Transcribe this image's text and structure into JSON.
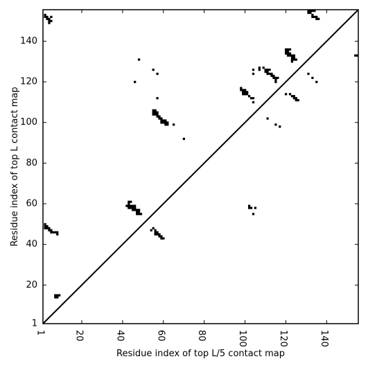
{
  "chart_data": {
    "type": "scatter",
    "title": "",
    "xlabel": "Residue index of top L/5 contact map",
    "ylabel": "Residue index of top L contact map",
    "xlim": [
      1,
      155.5
    ],
    "ylim": [
      1,
      155.5
    ],
    "x_ticks": [
      1,
      20,
      40,
      60,
      80,
      100,
      120,
      140
    ],
    "y_ticks": [
      1,
      20,
      40,
      60,
      80,
      100,
      120,
      140
    ],
    "x_tick_labels": [
      "1",
      "20",
      "40",
      "60",
      "80",
      "100",
      "120",
      "140"
    ],
    "y_tick_labels": [
      "1",
      "20",
      "40",
      "60",
      "80",
      "100",
      "120",
      "140"
    ],
    "grid": false,
    "diagonal_line": true,
    "marker_color": "#000000",
    "cell_size": 1,
    "upper_triangle_points": [
      [
        2,
        153
      ],
      [
        2,
        152
      ],
      [
        3,
        152
      ],
      [
        3,
        151
      ],
      [
        4,
        151
      ],
      [
        4,
        150
      ],
      [
        4,
        149
      ],
      [
        5,
        150
      ],
      [
        5,
        152
      ],
      [
        43,
        61
      ],
      [
        43,
        60
      ],
      [
        44,
        61
      ],
      [
        42,
        59
      ],
      [
        43,
        59
      ],
      [
        44,
        59
      ],
      [
        45,
        59
      ],
      [
        46,
        59
      ],
      [
        43,
        58
      ],
      [
        44,
        58
      ],
      [
        45,
        58
      ],
      [
        46,
        58
      ],
      [
        45,
        57
      ],
      [
        46,
        57
      ],
      [
        47,
        57
      ],
      [
        48,
        57
      ],
      [
        47,
        56
      ],
      [
        48,
        56
      ],
      [
        47,
        55
      ],
      [
        48,
        55
      ],
      [
        49,
        55
      ],
      [
        55,
        106
      ],
      [
        56,
        106
      ],
      [
        55,
        105
      ],
      [
        56,
        105
      ],
      [
        57,
        105
      ],
      [
        55,
        104
      ],
      [
        56,
        104
      ],
      [
        57,
        104
      ],
      [
        57,
        103
      ],
      [
        58,
        103
      ],
      [
        58,
        102
      ],
      [
        59,
        102
      ],
      [
        59,
        101
      ],
      [
        60,
        101
      ],
      [
        61,
        101
      ],
      [
        59,
        100
      ],
      [
        60,
        100
      ],
      [
        61,
        100
      ],
      [
        62,
        100
      ],
      [
        61,
        99
      ],
      [
        62,
        99
      ],
      [
        65,
        99
      ],
      [
        70,
        92
      ],
      [
        46,
        120
      ],
      [
        48,
        131
      ],
      [
        55,
        126
      ],
      [
        57,
        124
      ],
      [
        57,
        112
      ],
      [
        98,
        117
      ],
      [
        98,
        116
      ],
      [
        99,
        116
      ],
      [
        100,
        116
      ],
      [
        99,
        115
      ],
      [
        100,
        115
      ],
      [
        101,
        115
      ],
      [
        99,
        114
      ],
      [
        100,
        114
      ],
      [
        101,
        114
      ],
      [
        102,
        113
      ],
      [
        103,
        112
      ],
      [
        104,
        112
      ],
      [
        104,
        110
      ],
      [
        104,
        124
      ],
      [
        104,
        126
      ],
      [
        107,
        127
      ],
      [
        107,
        126
      ],
      [
        109,
        127
      ],
      [
        110,
        126
      ],
      [
        110,
        125
      ],
      [
        111,
        126
      ],
      [
        111,
        125
      ],
      [
        112,
        126
      ],
      [
        111,
        124
      ],
      [
        112,
        124
      ],
      [
        113,
        124
      ],
      [
        113,
        123
      ],
      [
        114,
        123
      ],
      [
        114,
        122
      ],
      [
        115,
        122
      ],
      [
        115,
        121
      ],
      [
        116,
        122
      ],
      [
        115,
        120
      ],
      [
        111,
        102
      ],
      [
        115,
        99
      ],
      [
        117,
        98
      ],
      [
        120,
        136
      ],
      [
        121,
        136
      ],
      [
        120,
        135
      ],
      [
        121,
        135
      ],
      [
        122,
        136
      ],
      [
        120,
        134
      ],
      [
        121,
        134
      ],
      [
        122,
        134
      ],
      [
        121,
        133
      ],
      [
        122,
        133
      ],
      [
        123,
        133
      ],
      [
        124,
        133
      ],
      [
        123,
        132
      ],
      [
        124,
        132
      ],
      [
        123,
        131
      ],
      [
        124,
        131
      ],
      [
        125,
        131
      ],
      [
        123,
        130
      ],
      [
        120,
        114
      ],
      [
        122,
        114
      ],
      [
        123,
        113
      ],
      [
        124,
        113
      ],
      [
        124,
        112
      ],
      [
        125,
        112
      ],
      [
        125,
        111
      ],
      [
        126,
        111
      ],
      [
        131,
        155
      ],
      [
        132,
        155
      ],
      [
        133,
        155
      ],
      [
        134,
        155
      ],
      [
        131,
        154
      ],
      [
        132,
        154
      ],
      [
        133,
        153
      ],
      [
        133,
        152
      ],
      [
        134,
        152
      ],
      [
        135,
        152
      ],
      [
        135,
        151
      ],
      [
        136,
        151
      ],
      [
        131,
        124
      ],
      [
        133,
        122
      ],
      [
        135,
        120
      ],
      [
        154,
        133
      ],
      [
        155,
        133
      ]
    ],
    "lower_triangle_points": [
      [
        2,
        50
      ],
      [
        2,
        49
      ],
      [
        3,
        49
      ],
      [
        2,
        48
      ],
      [
        3,
        48
      ],
      [
        4,
        48
      ],
      [
        4,
        47
      ],
      [
        5,
        47
      ],
      [
        5,
        46
      ],
      [
        6,
        46
      ],
      [
        7,
        46
      ],
      [
        8,
        46
      ],
      [
        8,
        45
      ],
      [
        7,
        15
      ],
      [
        8,
        15
      ],
      [
        9,
        15
      ],
      [
        7,
        14
      ],
      [
        8,
        14
      ],
      [
        54,
        47
      ],
      [
        55,
        48
      ],
      [
        56,
        47
      ],
      [
        56,
        46
      ],
      [
        57,
        46
      ],
      [
        56,
        45
      ],
      [
        57,
        45
      ],
      [
        58,
        45
      ],
      [
        58,
        44
      ],
      [
        59,
        44
      ],
      [
        59,
        43
      ],
      [
        60,
        43
      ],
      [
        102,
        59
      ],
      [
        102,
        58
      ],
      [
        103,
        58
      ],
      [
        105,
        58
      ],
      [
        104,
        55
      ]
    ]
  }
}
